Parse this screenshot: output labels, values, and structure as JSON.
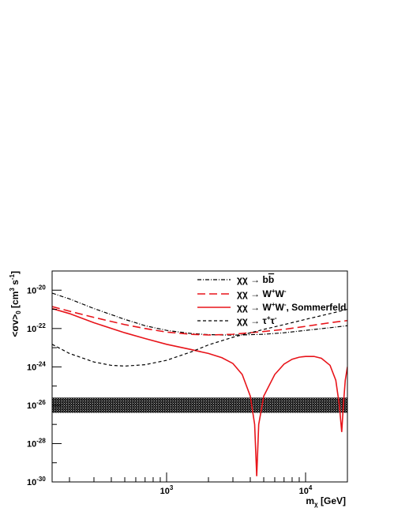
{
  "chart_data": {
    "type": "line",
    "xlabel": "m",
    "xlabel_sub": "χ",
    "xlabel_unit": " [GeV]",
    "ylabel": "<σv>",
    "ylabel_sub": "0",
    "ylabel_unit": " [cm",
    "ylabel_exp1": "3",
    "ylabel_unit2": " s",
    "ylabel_exp2": "-1",
    "ylabel_end": "]",
    "x_scale": "log",
    "y_scale": "log",
    "xlim": [
      150,
      20000
    ],
    "ylim": [
      1e-30,
      1e-19
    ],
    "x_ticks": [
      {
        "value": 1000,
        "base": "10",
        "exp": "3"
      },
      {
        "value": 10000,
        "base": "10",
        "exp": "4"
      }
    ],
    "y_ticks": [
      {
        "value": 1e-20,
        "base": "10",
        "exp": "-20"
      },
      {
        "value": 1e-22,
        "base": "10",
        "exp": "-22"
      },
      {
        "value": 1e-24,
        "base": "10",
        "exp": "-24"
      },
      {
        "value": 1e-26,
        "base": "10",
        "exp": "-26"
      },
      {
        "value": 1e-28,
        "base": "10",
        "exp": "-28"
      },
      {
        "value": 1e-30,
        "base": "10",
        "exp": "-30"
      }
    ],
    "band": {
      "y_low": 4e-27,
      "y_high": 2.5e-26,
      "color": "#333333"
    },
    "legend_position": "top-right",
    "series": [
      {
        "legend_text": "χχ → b",
        "legend_overline": "b",
        "legend_plain": "",
        "legend_sup1": "",
        "legend_mid": "",
        "legend_sup2": "",
        "legend_tail": "",
        "color": "#000000",
        "style": "dashdot",
        "points": [
          [
            150,
            7e-21
          ],
          [
            200,
            3.5e-21
          ],
          [
            300,
            1.1e-21
          ],
          [
            500,
            3e-22
          ],
          [
            700,
            1.4e-22
          ],
          [
            1000,
            8e-23
          ],
          [
            1500,
            5.5e-23
          ],
          [
            2000,
            4.8e-23
          ],
          [
            3000,
            4.5e-23
          ],
          [
            5000,
            5e-23
          ],
          [
            7000,
            6e-23
          ],
          [
            10000,
            8e-23
          ],
          [
            15000,
            1.1e-22
          ],
          [
            20000,
            1.4e-22
          ]
        ]
      },
      {
        "legend_text": "χχ → W",
        "legend_overline": "",
        "legend_plain": "",
        "legend_sup1": "+",
        "legend_mid": "W",
        "legend_sup2": "-",
        "legend_tail": "",
        "color": "#e8141a",
        "style": "longdash",
        "points": [
          [
            150,
            1.4e-21
          ],
          [
            200,
            8e-22
          ],
          [
            300,
            3.8e-22
          ],
          [
            500,
            1.6e-22
          ],
          [
            700,
            1e-22
          ],
          [
            1000,
            6.5e-23
          ],
          [
            1500,
            5e-23
          ],
          [
            2000,
            4.6e-23
          ],
          [
            3000,
            5e-23
          ],
          [
            5000,
            7e-23
          ],
          [
            7000,
            9e-23
          ],
          [
            10000,
            1.3e-22
          ],
          [
            15000,
            2e-22
          ],
          [
            20000,
            2.6e-22
          ]
        ]
      },
      {
        "legend_text": "χχ → W",
        "legend_overline": "",
        "legend_plain": "",
        "legend_sup1": "+",
        "legend_mid": "W",
        "legend_sup2": "-",
        "legend_tail": ", Sommerfeld",
        "color": "#e8141a",
        "style": "solid",
        "points": [
          [
            150,
            1.1e-21
          ],
          [
            200,
            6e-22
          ],
          [
            300,
            2e-22
          ],
          [
            500,
            6e-23
          ],
          [
            700,
            3e-23
          ],
          [
            1000,
            1.5e-23
          ],
          [
            1500,
            8e-24
          ],
          [
            2000,
            5e-24
          ],
          [
            2500,
            3e-24
          ],
          [
            3000,
            1.5e-24
          ],
          [
            3500,
            4e-25
          ],
          [
            4000,
            3e-26
          ],
          [
            4300,
            1e-27
          ],
          [
            4450,
            2e-30
          ],
          [
            4600,
            1e-27
          ],
          [
            5000,
            3e-26
          ],
          [
            6000,
            4e-25
          ],
          [
            7000,
            1.4e-24
          ],
          [
            8000,
            2.5e-24
          ],
          [
            9000,
            3.2e-24
          ],
          [
            10000,
            3.5e-24
          ],
          [
            11500,
            3.5e-24
          ],
          [
            13000,
            2.8e-24
          ],
          [
            15000,
            1.2e-24
          ],
          [
            16500,
            2e-25
          ],
          [
            17500,
            1e-26
          ],
          [
            18200,
            4e-28
          ],
          [
            18700,
            1e-26
          ],
          [
            19300,
            2e-25
          ],
          [
            20000,
            1e-24
          ]
        ]
      },
      {
        "legend_text": "χχ → τ",
        "legend_overline": "",
        "legend_plain": "",
        "legend_sup1": "+",
        "legend_mid": "τ",
        "legend_sup2": "-",
        "legend_tail": "",
        "color": "#000000",
        "style": "dash",
        "points": [
          [
            150,
            1.5e-23
          ],
          [
            200,
            5e-24
          ],
          [
            300,
            1.8e-24
          ],
          [
            400,
            1.2e-24
          ],
          [
            500,
            1.1e-24
          ],
          [
            700,
            1.3e-24
          ],
          [
            1000,
            2.2e-24
          ],
          [
            1500,
            6e-24
          ],
          [
            2000,
            1.4e-23
          ],
          [
            3000,
            3.5e-23
          ],
          [
            5000,
            9e-23
          ],
          [
            7000,
            1.6e-22
          ],
          [
            10000,
            3e-22
          ],
          [
            15000,
            6e-22
          ],
          [
            20000,
            1e-21
          ]
        ]
      }
    ]
  }
}
